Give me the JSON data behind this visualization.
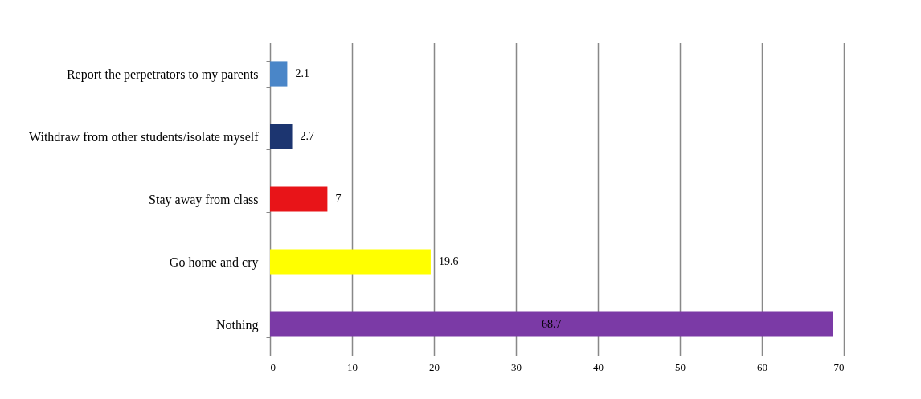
{
  "chart_data": {
    "type": "bar",
    "orientation": "horizontal",
    "categories": [
      "Report the perpetrators to my parents",
      "Withdraw from other students/isolate myself",
      "Stay away from class",
      "Go home and cry",
      "Nothing"
    ],
    "values": [
      2.1,
      2.7,
      7,
      19.6,
      68.7
    ],
    "colors": [
      "#4a86c8",
      "#1c3570",
      "#e81418",
      "#ffff00",
      "#7b3aa6"
    ],
    "xlim": [
      0,
      70
    ],
    "xticks": [
      0,
      10,
      20,
      30,
      40,
      50,
      60,
      70
    ],
    "grid": "x",
    "data_labels": true
  }
}
